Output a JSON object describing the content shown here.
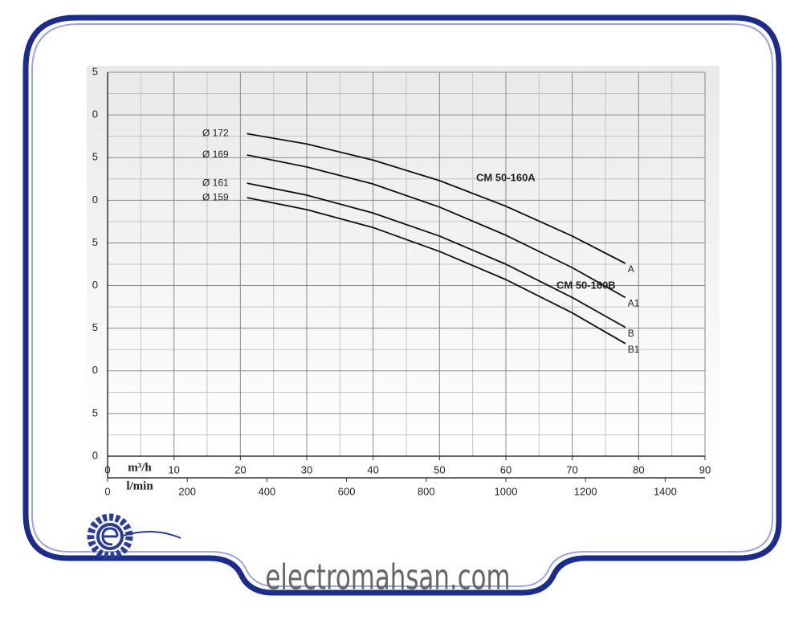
{
  "chart_data": {
    "type": "line",
    "xlabel": "m³/h",
    "x2label": "l/min",
    "xlim": [
      0,
      90
    ],
    "xticks": [
      0,
      10,
      20,
      30,
      40,
      50,
      60,
      70,
      80,
      90
    ],
    "x2lim": [
      0,
      1500
    ],
    "x2ticks": [
      0,
      200,
      400,
      600,
      800,
      1000,
      1200,
      1400
    ],
    "ylim": [
      0,
      45
    ],
    "yticks": [
      0,
      5,
      {
        "value": 10,
        "label": "0"
      },
      {
        "value": 15,
        "label": "5"
      },
      {
        "value": 20,
        "label": "0"
      },
      {
        "value": 25,
        "label": "5"
      },
      {
        "value": 30,
        "label": "0"
      },
      {
        "value": 35,
        "label": "5"
      },
      {
        "value": 40,
        "label": "0"
      },
      {
        "value": 45,
        "label": "5"
      }
    ],
    "grid": true,
    "x": [
      21,
      30,
      40,
      50,
      60,
      70,
      78
    ],
    "series": [
      {
        "name": "Ø 172",
        "end_label": "A",
        "color": "#111111",
        "values": [
          37.8,
          36.6,
          34.7,
          32.3,
          29.3,
          25.8,
          22.6
        ]
      },
      {
        "name": "Ø 169",
        "end_label": "A1",
        "color": "#111111",
        "values": [
          35.3,
          33.9,
          31.9,
          29.2,
          25.9,
          22.1,
          18.6
        ]
      },
      {
        "name": "Ø 161",
        "end_label": "B",
        "color": "#111111",
        "values": [
          32.0,
          30.6,
          28.5,
          25.8,
          22.5,
          18.6,
          15.1
        ]
      },
      {
        "name": "Ø 159",
        "end_label": "B1",
        "color": "#111111",
        "values": [
          30.3,
          28.9,
          26.8,
          24.0,
          20.7,
          16.8,
          13.2
        ]
      }
    ],
    "annotations": [
      "CM 50-160A",
      "CM 50-160B"
    ],
    "watermark": "electromahsan.com"
  }
}
